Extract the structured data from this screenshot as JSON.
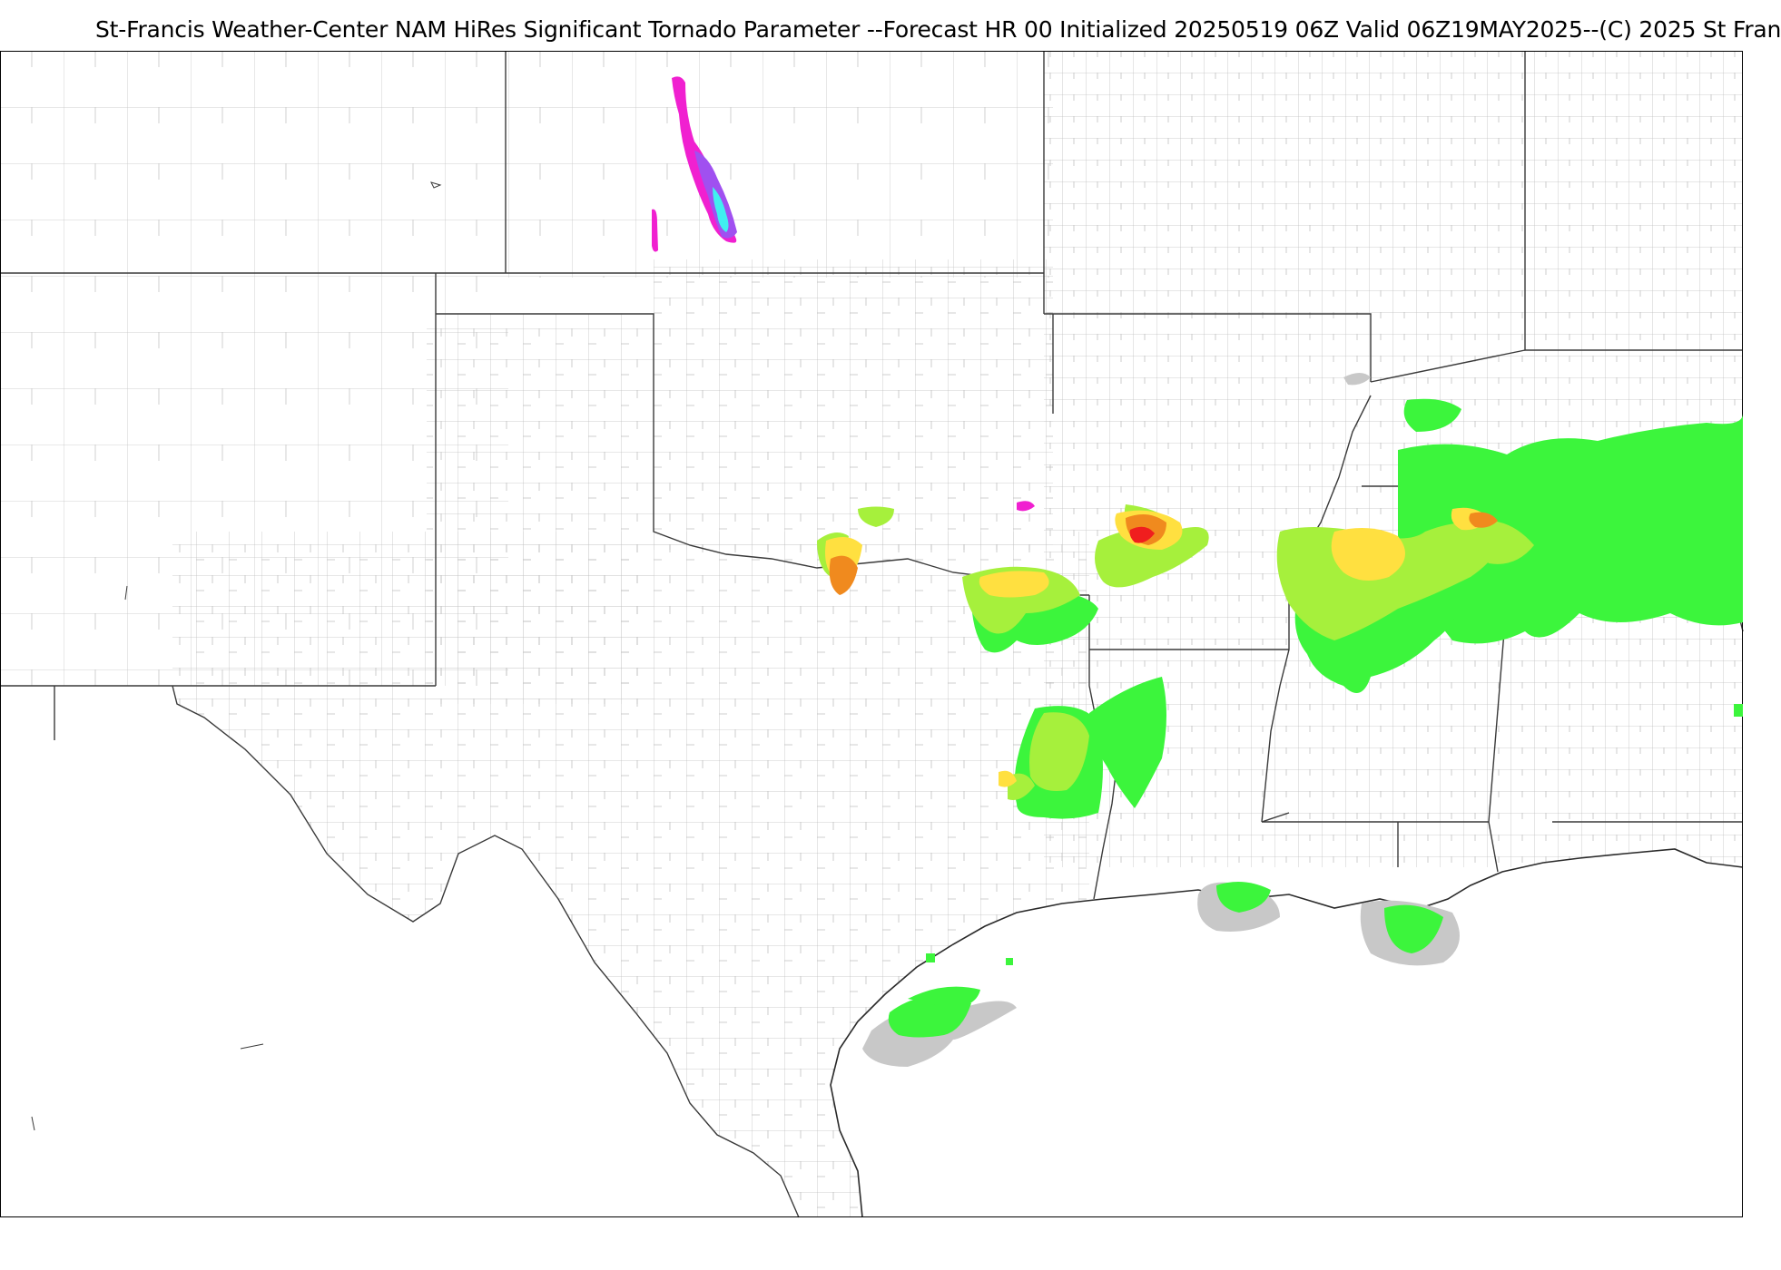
{
  "title": "St-Francis Weather-Center NAM HiRes Significant Tornado Parameter --Forecast HR 00 Initialized 20250519 06Z Valid 06Z19MAY2025--(C) 2025 St Fran",
  "map": {
    "colors": {
      "background": "#ffffff",
      "county_lines": "#b8b8b8",
      "state_lines": "#3a3a3a",
      "coast": "#2a2a2a",
      "frame": "#000000"
    },
    "color_scale": {
      "gray": "#c8c8c8",
      "green": "#3cf53c",
      "light_green": "#a6f03c",
      "yellow": "#ffe040",
      "orange": "#f08a1e",
      "red": "#f01e1e",
      "magenta": "#f020d0",
      "purple": "#a050f0",
      "cyan": "#40f0f0"
    }
  }
}
